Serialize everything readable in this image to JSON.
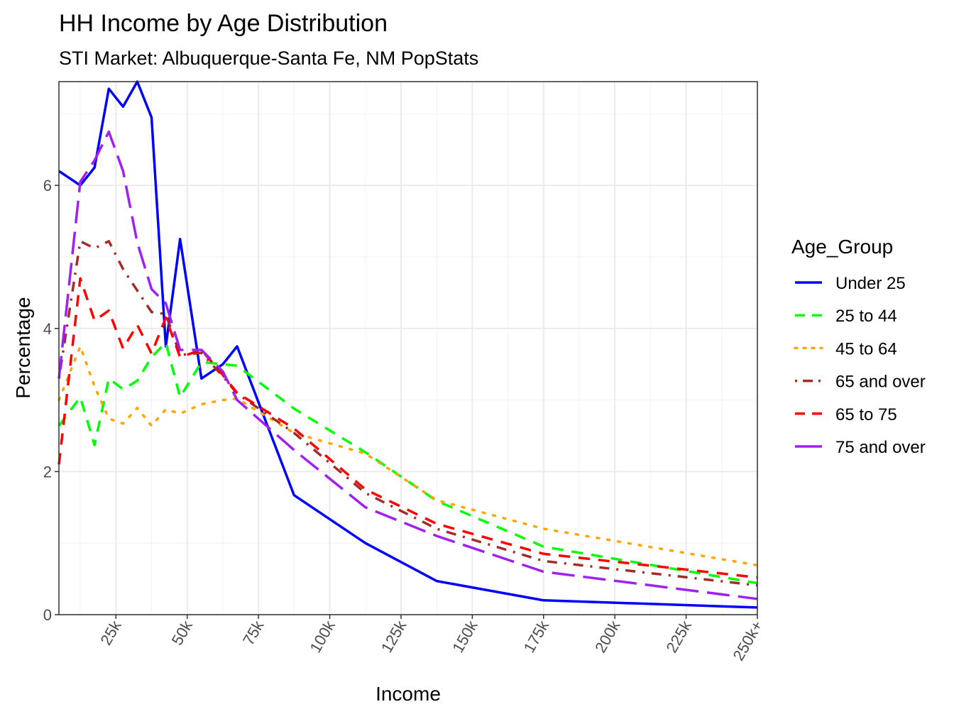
{
  "chart_data": {
    "type": "line",
    "title": "HH Income by Age Distribution",
    "subtitle": "STI Market: Albuquerque-Santa Fe, NM PopStats",
    "xlabel": "Income",
    "ylabel": "Percentage",
    "xlim": [
      5,
      250
    ],
    "ylim": [
      0,
      7.45
    ],
    "x_ticks": [
      25,
      50,
      75,
      100,
      125,
      150,
      175,
      200,
      225,
      250
    ],
    "x_tick_labels": [
      "25k",
      "50k",
      "75k",
      "100k",
      "125k",
      "150k",
      "175k",
      "200k",
      "225k",
      "250k+"
    ],
    "y_ticks": [
      0,
      2,
      4,
      6
    ],
    "y_tick_labels": [
      "0",
      "2",
      "4",
      "6"
    ],
    "grid": true,
    "legend_title": "Age_Group",
    "legend_position": "right",
    "x": [
      5,
      12.5,
      17.5,
      22.5,
      27.5,
      32.5,
      37.5,
      42.5,
      47.5,
      55,
      62.5,
      67.5,
      87.5,
      112.5,
      137.5,
      175,
      250
    ],
    "series": [
      {
        "name": "Under 25",
        "color": "#0000ff",
        "linetype": "solid",
        "values": [
          6.2,
          6.0,
          6.25,
          7.35,
          7.1,
          7.45,
          6.95,
          3.75,
          5.25,
          3.3,
          3.5,
          3.75,
          1.67,
          1.0,
          0.47,
          0.2,
          0.1
        ]
      },
      {
        "name": "25 to 44",
        "color": "#00ff00",
        "linetype": "dashed",
        "values": [
          2.64,
          3.04,
          2.37,
          3.3,
          3.15,
          3.27,
          3.6,
          3.8,
          3.04,
          3.53,
          3.5,
          3.48,
          2.88,
          2.27,
          1.59,
          0.95,
          0.44
        ]
      },
      {
        "name": "45 to 64",
        "color": "#ffa500",
        "linetype": "dotted",
        "values": [
          3.0,
          3.75,
          3.19,
          2.74,
          2.67,
          2.89,
          2.64,
          2.87,
          2.81,
          2.94,
          3.0,
          3.02,
          2.54,
          2.25,
          1.6,
          1.2,
          0.69
        ]
      },
      {
        "name": "65 and over",
        "color": "#a52a2a",
        "linetype": "dotdash",
        "values": [
          3.3,
          5.22,
          5.12,
          5.22,
          4.83,
          4.53,
          4.23,
          4.2,
          3.63,
          3.66,
          3.33,
          3.09,
          2.54,
          1.7,
          1.2,
          0.75,
          0.41
        ]
      },
      {
        "name": "65 to 75",
        "color": "#ff0000",
        "linetype": "dashed",
        "values": [
          2.1,
          4.7,
          4.11,
          4.25,
          3.72,
          4.05,
          3.65,
          4.15,
          3.6,
          3.7,
          3.35,
          3.1,
          2.6,
          1.75,
          1.27,
          0.85,
          0.52
        ]
      },
      {
        "name": "75 and over",
        "color": "#a020f0",
        "linetype": "longdash",
        "values": [
          3.3,
          6.05,
          6.35,
          6.75,
          6.2,
          5.2,
          4.55,
          4.35,
          3.7,
          3.7,
          3.4,
          3.0,
          2.3,
          1.5,
          1.1,
          0.6,
          0.22
        ]
      }
    ]
  }
}
